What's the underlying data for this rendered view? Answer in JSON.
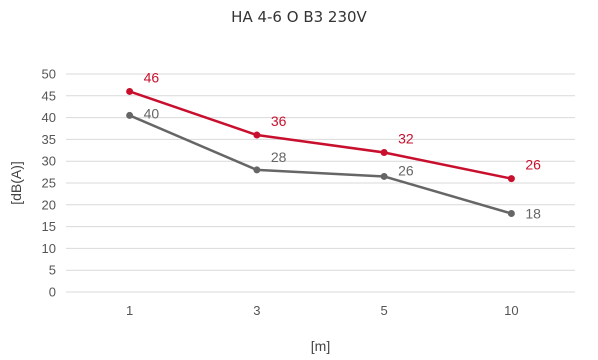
{
  "chart_data": {
    "type": "line",
    "title": "HA 4-6 O B3 230V",
    "xlabel": "[m]",
    "ylabel": "[dB(A)]",
    "categories": [
      "1",
      "3",
      "5",
      "10"
    ],
    "ylim": [
      0,
      50
    ],
    "yticks": [
      "0",
      "5",
      "10",
      "15",
      "20",
      "25",
      "30",
      "35",
      "40",
      "45",
      "50"
    ],
    "grid": true,
    "series": [
      {
        "color": "#c8102e",
        "values": [
          46,
          36,
          32,
          26
        ],
        "labels": [
          "46",
          "36",
          "32",
          "26"
        ]
      },
      {
        "color": "#666666",
        "values": [
          40.5,
          28,
          26.5,
          18
        ],
        "labels": [
          "40",
          "28",
          "26",
          "18"
        ]
      }
    ]
  }
}
